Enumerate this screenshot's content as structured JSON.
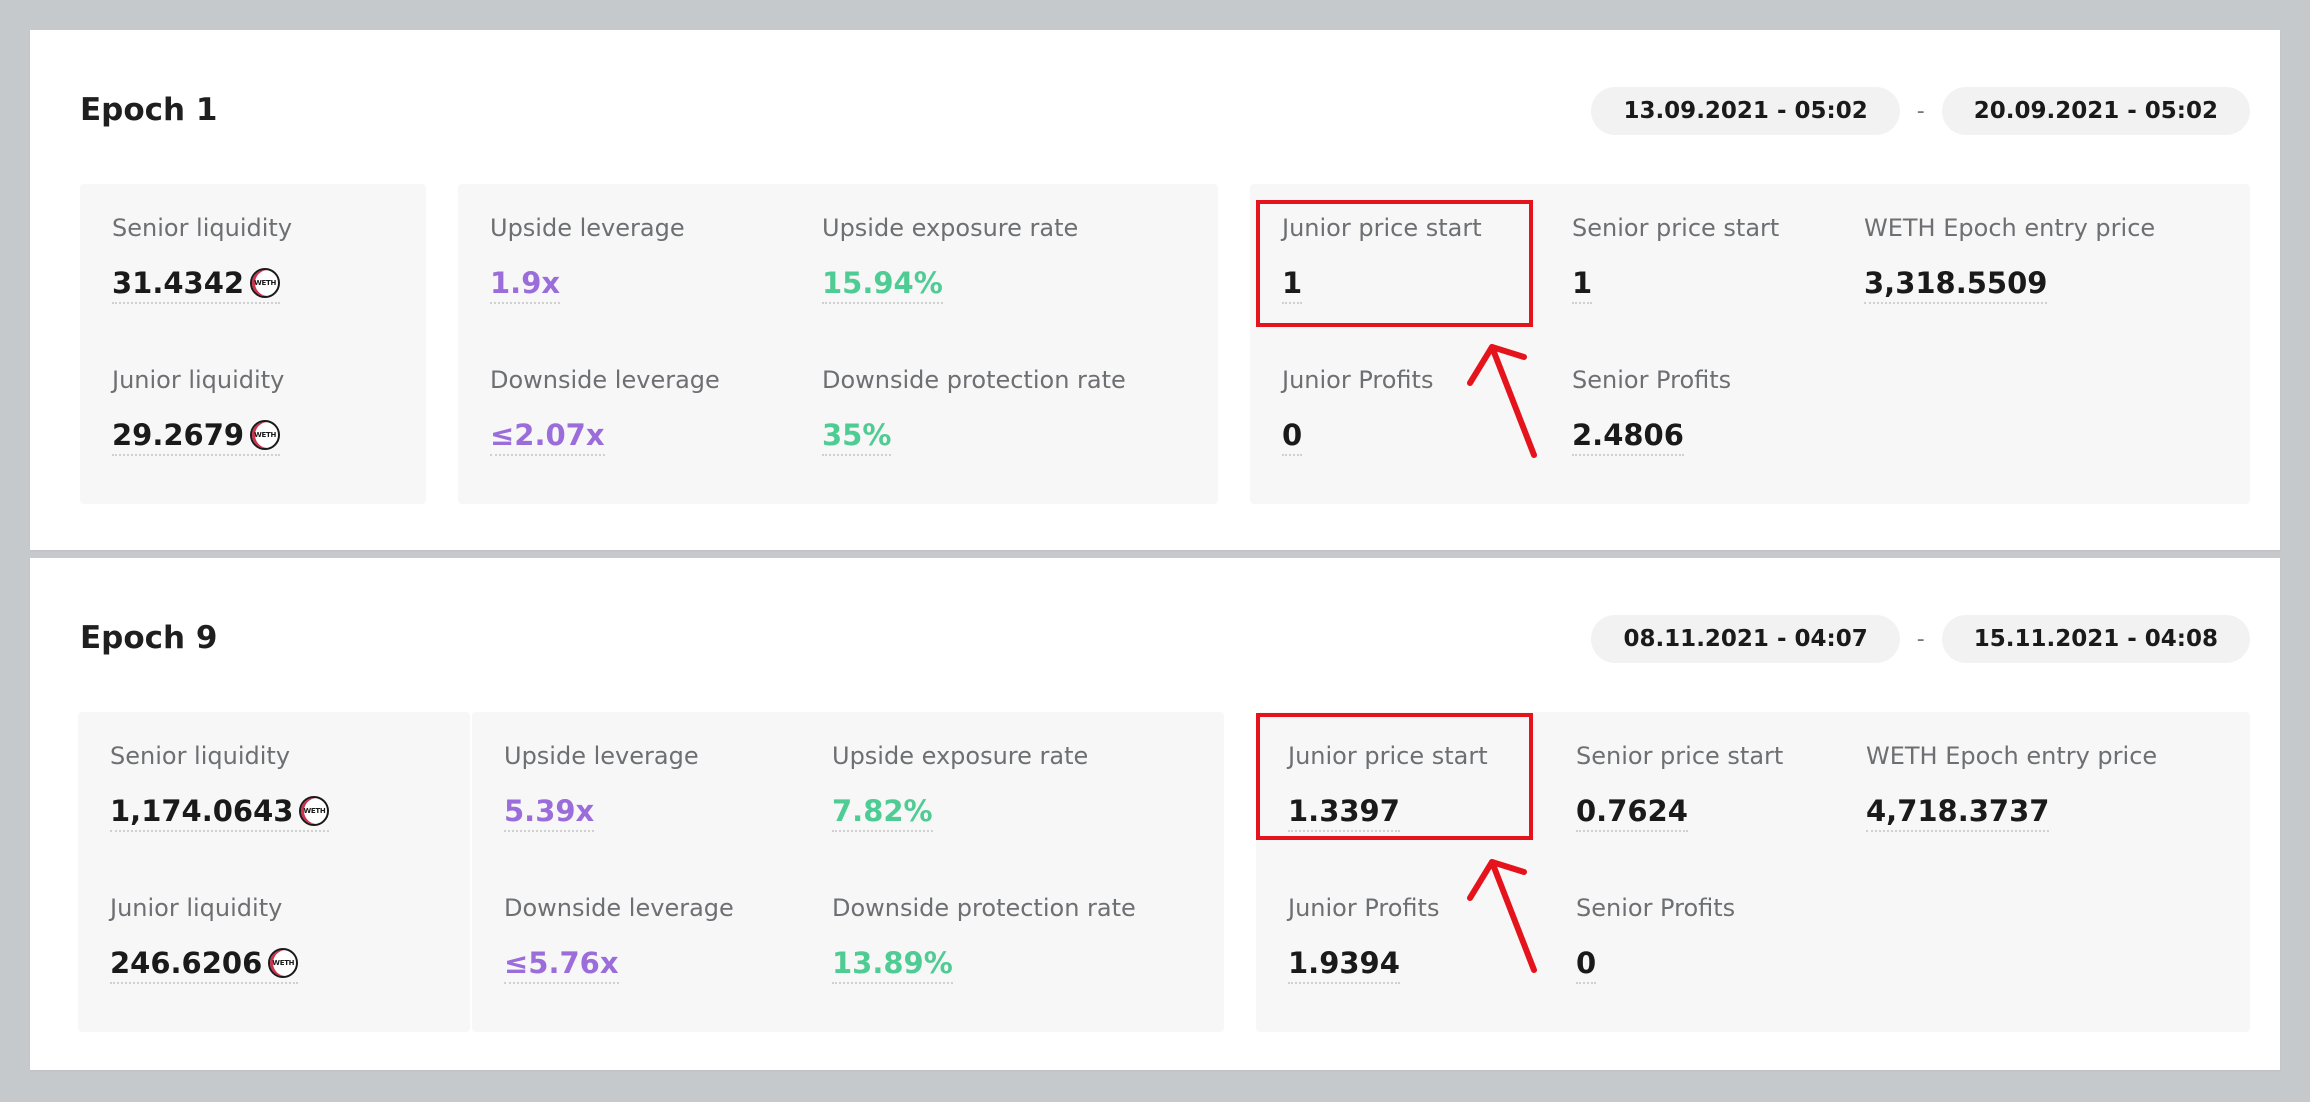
{
  "epochs": [
    {
      "title": "Epoch 1",
      "date_start": "13.09.2021 - 05:02",
      "date_sep": "-",
      "date_end": "20.09.2021 - 05:02",
      "senior_liquidity_label": "Senior liquidity",
      "senior_liquidity_value": "31.4342",
      "junior_liquidity_label": "Junior liquidity",
      "junior_liquidity_value": "29.2679",
      "upside_leverage_label": "Upside leverage",
      "upside_leverage_value": "1.9x",
      "upside_exposure_label": "Upside exposure rate",
      "upside_exposure_value": "15.94%",
      "downside_leverage_label": "Downside leverage",
      "downside_leverage_value": "≤2.07x",
      "downside_protection_label": "Downside protection rate",
      "downside_protection_value": "35%",
      "junior_price_label": "Junior price start",
      "junior_price_value": "1",
      "senior_price_label": "Senior price start",
      "senior_price_value": "1",
      "entry_price_label": "WETH Epoch entry price",
      "entry_price_value": "3,318.5509",
      "junior_profits_label": "Junior Profits",
      "junior_profits_value": "0",
      "senior_profits_label": "Senior Profits",
      "senior_profits_value": "2.4806"
    },
    {
      "title": "Epoch 9",
      "date_start": "08.11.2021 - 04:07",
      "date_sep": "-",
      "date_end": "15.11.2021 - 04:08",
      "senior_liquidity_label": "Senior liquidity",
      "senior_liquidity_value": "1,174.0643",
      "junior_liquidity_label": "Junior liquidity",
      "junior_liquidity_value": "246.6206",
      "upside_leverage_label": "Upside leverage",
      "upside_leverage_value": "5.39x",
      "upside_exposure_label": "Upside exposure rate",
      "upside_exposure_value": "7.82%",
      "downside_leverage_label": "Downside leverage",
      "downside_leverage_value": "≤5.76x",
      "downside_protection_label": "Downside protection rate",
      "downside_protection_value": "13.89%",
      "junior_price_label": "Junior price start",
      "junior_price_value": "1.3397",
      "senior_price_label": "Senior price start",
      "senior_price_value": "0.7624",
      "entry_price_label": "WETH Epoch entry price",
      "entry_price_value": "4,718.3737",
      "junior_profits_label": "Junior Profits",
      "junior_profits_value": "1.9394",
      "senior_profits_label": "Senior Profits",
      "senior_profits_value": "0"
    }
  ],
  "token": {
    "symbol": "WETH",
    "icon": "weth-token-icon"
  },
  "colors": {
    "leverage": "#9b6ddb",
    "rate": "#4fcc94",
    "highlight": "#e5141c"
  }
}
